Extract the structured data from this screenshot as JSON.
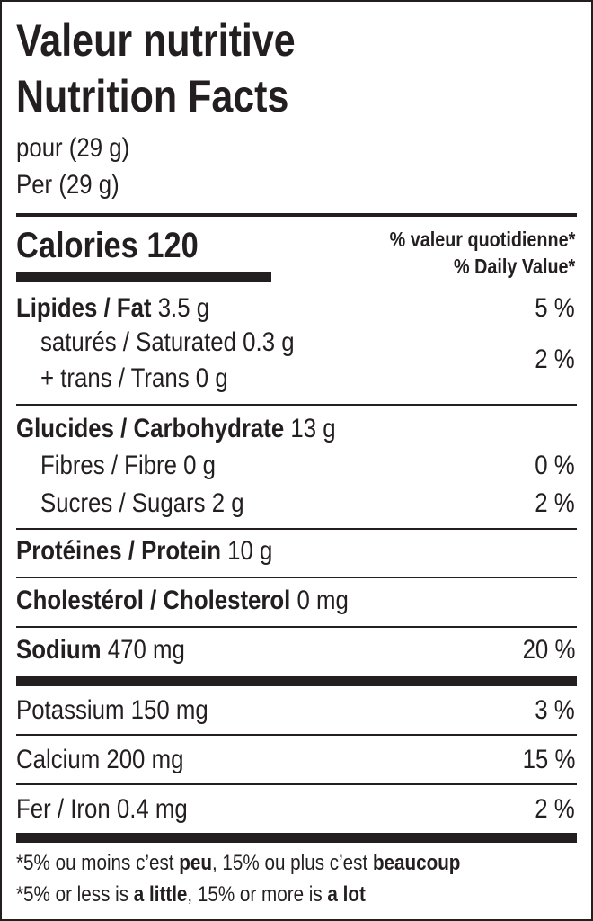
{
  "title_fr": "Valeur nutritive",
  "title_en": "Nutrition Facts",
  "serving_fr": "pour (29 g)",
  "serving_en": "Per (29 g)",
  "calories_label": "Calories",
  "calories_value": "120",
  "dv_header_fr": "% valeur quotidienne*",
  "dv_header_en": "% Daily Value*",
  "rows": {
    "fat": {
      "label": "Lipides / Fat",
      "amount": "3.5 g",
      "dv": "5 %"
    },
    "saturated": {
      "label": "saturés / Saturated",
      "amount": "0.3 g"
    },
    "trans": {
      "label": "+ trans / Trans",
      "amount": "0 g"
    },
    "sat_trans_dv": "2 %",
    "carb": {
      "label": "Glucides / Carbohydrate",
      "amount": "13 g"
    },
    "fibre": {
      "label": "Fibres / Fibre",
      "amount": "0 g",
      "dv": "0 %"
    },
    "sugars": {
      "label": "Sucres / Sugars",
      "amount": "2 g",
      "dv": "2 %"
    },
    "protein": {
      "label": "Protéines / Protein",
      "amount": "10 g"
    },
    "cholesterol": {
      "label": "Cholestérol / Cholesterol",
      "amount": "0 mg"
    },
    "sodium": {
      "label": "Sodium",
      "amount": "470 mg",
      "dv": "20 %"
    },
    "potassium": {
      "label": "Potassium",
      "amount": "150 mg",
      "dv": "3 %"
    },
    "calcium": {
      "label": "Calcium",
      "amount": "200 mg",
      "dv": "15 %"
    },
    "iron": {
      "label": "Fer / Iron",
      "amount": "0.4 mg",
      "dv": "2 %"
    }
  },
  "footnote_fr": {
    "a": "*5% ou moins c’est ",
    "b": "peu",
    "c": ", 15% ou plus c’est ",
    "d": "beaucoup"
  },
  "footnote_en": {
    "a": "*5% or less is ",
    "b": "a little",
    "c": ", 15% or more is ",
    "d": "a lot"
  }
}
